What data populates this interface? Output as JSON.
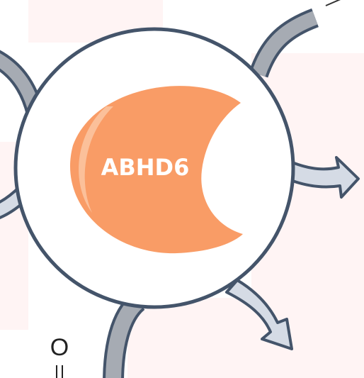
{
  "protein": {
    "label": "ABHD6"
  },
  "fragment": {
    "label": "O"
  }
}
